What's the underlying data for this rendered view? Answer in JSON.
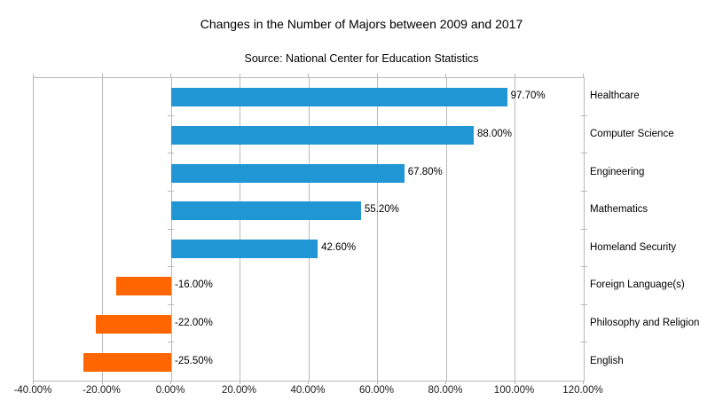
{
  "title": "Changes in the Number of Majors between 2009 and 2017",
  "subtitle": "Source: National Center for Education Statistics",
  "chart_data": {
    "type": "bar",
    "orientation": "horizontal",
    "title": "Changes in the Number of Majors between 2009 and 2017",
    "subtitle": "Source: National Center for Education Statistics",
    "categories": [
      "Healthcare",
      "Computer Science",
      "Engineering",
      "Mathematics",
      "Homeland Security",
      "Foreign Language(s)",
      "Philosophy and Religion",
      "English"
    ],
    "values": [
      97.7,
      88.0,
      67.8,
      55.2,
      42.6,
      -16.0,
      -22.0,
      -25.5
    ],
    "value_labels": [
      "97.70%",
      "88.00%",
      "67.80%",
      "55.20%",
      "42.60%",
      "-16.00%",
      "-22.00%",
      "-25.50%"
    ],
    "x_ticks": [
      -40,
      -20,
      0,
      20,
      40,
      60,
      80,
      100,
      120
    ],
    "x_tick_labels": [
      "-40.00%",
      "-20.00%",
      "0.00%",
      "20.00%",
      "40.00%",
      "60.00%",
      "80.00%",
      "100.00%",
      "120.00%"
    ],
    "xlim": [
      -40,
      120
    ],
    "xlabel": "",
    "ylabel": "",
    "grid": "vertical",
    "legend": "none",
    "colors": {
      "positive": "#2196d5",
      "negative": "#ff6600",
      "grid": "#b9b9b9",
      "text": "#000000"
    }
  }
}
